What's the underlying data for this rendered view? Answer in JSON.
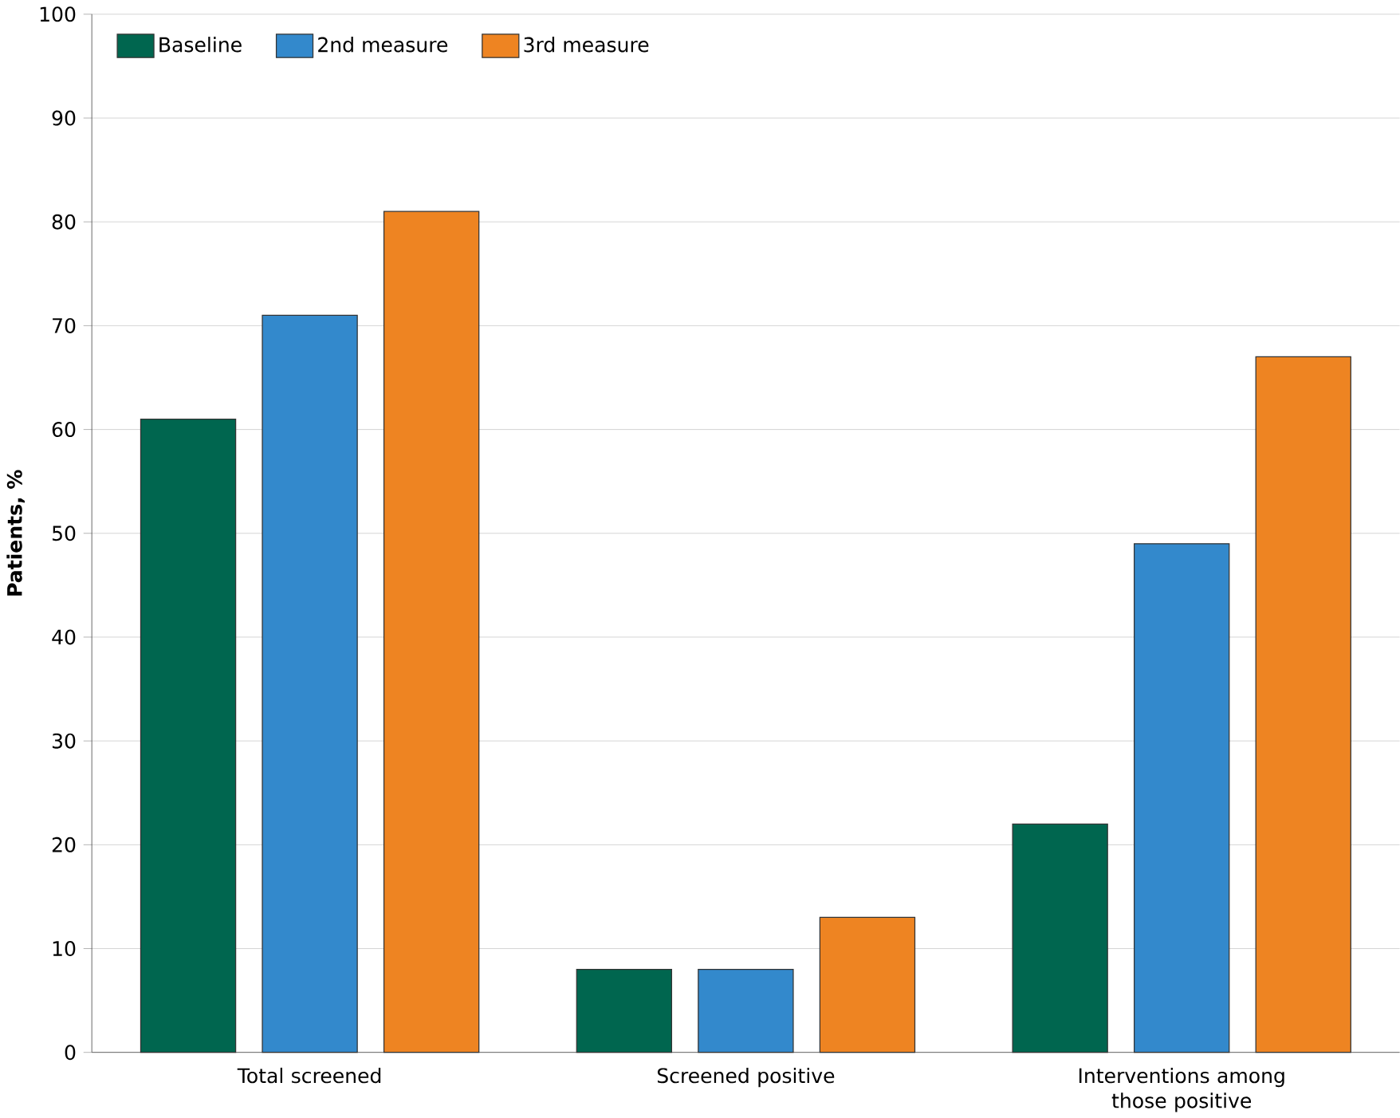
{
  "chart_data": {
    "type": "bar",
    "ylabel": "Patients, %",
    "categories": [
      "Total screened",
      "Screened positive",
      "Interventions among those positive"
    ],
    "series": [
      {
        "name": "Baseline",
        "color": "#00664f",
        "values": [
          61,
          8,
          22
        ]
      },
      {
        "name": "2nd measure",
        "color": "#3389cc",
        "values": [
          71,
          8,
          49
        ]
      },
      {
        "name": "3rd measure",
        "color": "#ee8422",
        "values": [
          81,
          13,
          67
        ]
      }
    ],
    "ylim": [
      0,
      100
    ],
    "yticks": [
      0,
      10,
      20,
      30,
      40,
      50,
      60,
      70,
      80,
      90,
      100
    ],
    "grid": "y",
    "legend": "top left"
  }
}
